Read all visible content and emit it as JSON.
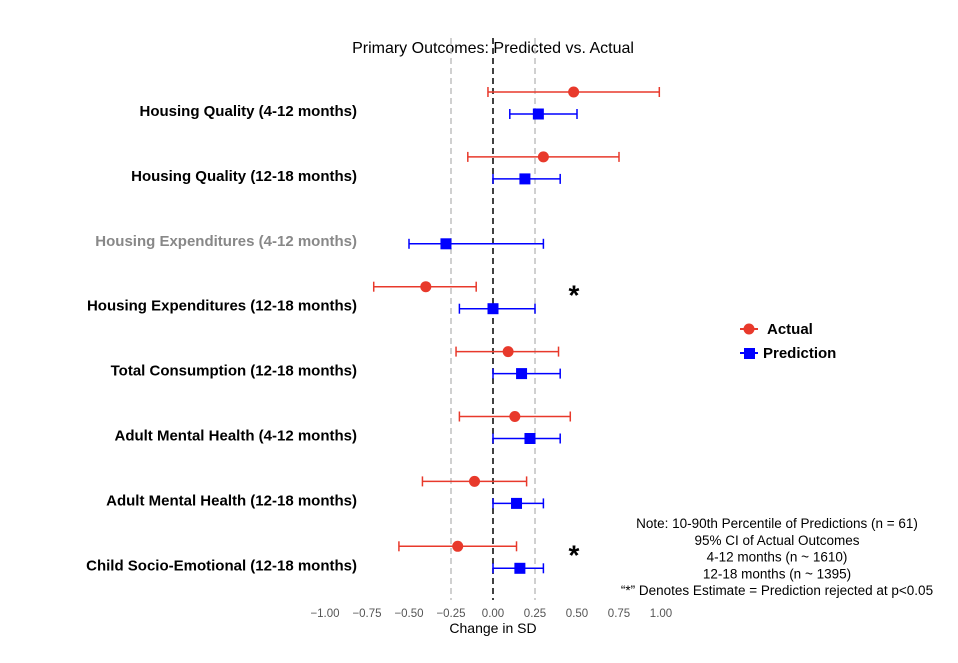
{
  "chart_data": {
    "type": "forest",
    "title": "Primary Outcomes: Predicted vs. Actual",
    "xlabel": "Change in SD",
    "xlim": [
      -1.0,
      1.0
    ],
    "xticks": [
      "−1.00",
      "−0.75",
      "−0.50",
      "−0.25",
      "0.00",
      "0.25",
      "0.50",
      "0.75",
      "1.00"
    ],
    "xtick_values": [
      -1.0,
      -0.75,
      -0.5,
      -0.25,
      0,
      0.25,
      0.5,
      0.75,
      1.0
    ],
    "reference_lines": {
      "zero": 0,
      "dashed_gray": [
        -0.25,
        0.25
      ]
    },
    "grid": false,
    "legend_position": "right",
    "colors": {
      "actual": "#e8392b",
      "prediction": "#0000ff",
      "muted_label": "#888888"
    },
    "series": [
      {
        "name": "Actual",
        "marker": "circle"
      },
      {
        "name": "Prediction",
        "marker": "square"
      }
    ],
    "outcomes": [
      {
        "label": "Housing Quality (4-12 months)",
        "muted": false,
        "significant": false,
        "actual": {
          "estimate": 0.48,
          "low": -0.03,
          "high": 0.99
        },
        "prediction": {
          "estimate": 0.27,
          "low": 0.1,
          "high": 0.5
        }
      },
      {
        "label": "Housing Quality (12-18 months)",
        "muted": false,
        "significant": false,
        "actual": {
          "estimate": 0.3,
          "low": -0.15,
          "high": 0.75
        },
        "prediction": {
          "estimate": 0.19,
          "low": 0.0,
          "high": 0.4
        }
      },
      {
        "label": "Housing Expenditures (4-12 months)",
        "muted": true,
        "significant": false,
        "actual": null,
        "prediction": {
          "estimate": -0.28,
          "low": -0.5,
          "high": 0.3
        }
      },
      {
        "label": "Housing Expenditures (12-18 months)",
        "muted": false,
        "significant": true,
        "actual": {
          "estimate": -0.4,
          "low": -0.71,
          "high": -0.1
        },
        "prediction": {
          "estimate": 0.0,
          "low": -0.2,
          "high": 0.25
        }
      },
      {
        "label": "Total Consumption (12-18 months)",
        "muted": false,
        "significant": false,
        "actual": {
          "estimate": 0.09,
          "low": -0.22,
          "high": 0.39
        },
        "prediction": {
          "estimate": 0.17,
          "low": 0.0,
          "high": 0.4
        }
      },
      {
        "label": "Adult Mental Health (4-12 months)",
        "muted": false,
        "significant": false,
        "actual": {
          "estimate": 0.13,
          "low": -0.2,
          "high": 0.46
        },
        "prediction": {
          "estimate": 0.22,
          "low": 0.0,
          "high": 0.4
        }
      },
      {
        "label": "Adult Mental Health (12-18 months)",
        "muted": false,
        "significant": false,
        "actual": {
          "estimate": -0.11,
          "low": -0.42,
          "high": 0.2
        },
        "prediction": {
          "estimate": 0.14,
          "low": 0.0,
          "high": 0.3
        }
      },
      {
        "label": "Child Socio-Emotional (12-18 months)",
        "muted": false,
        "significant": true,
        "actual": {
          "estimate": -0.21,
          "low": -0.56,
          "high": 0.14
        },
        "prediction": {
          "estimate": 0.16,
          "low": 0.0,
          "high": 0.3
        }
      }
    ],
    "significance_marker": "*",
    "note_lines": [
      "Note: 10-90th Percentile of Predictions (n = 61)",
      "95% CI of Actual Outcomes",
      "4-12 months (n ~ 1610)",
      "12-18 months (n ~ 1395)",
      "“*” Denotes Estimate = Prediction rejected at p<0.05"
    ]
  }
}
